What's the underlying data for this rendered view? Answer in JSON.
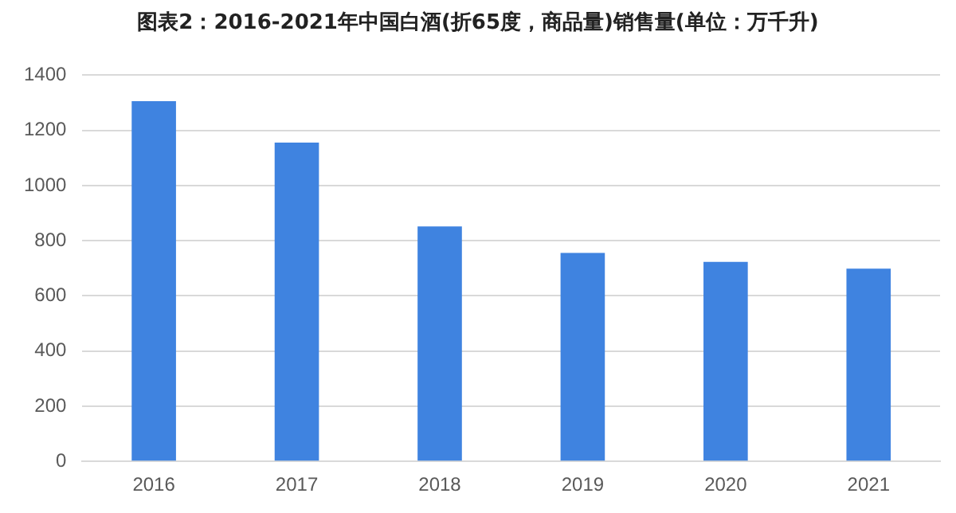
{
  "chart_data": {
    "type": "bar",
    "title": "图表2：2016-2021年中国白酒(折65度，商品量)销售量(单位：万千升)",
    "categories": [
      "2016",
      "2017",
      "2018",
      "2019",
      "2020",
      "2021"
    ],
    "values": [
      1306,
      1156,
      852,
      756,
      723,
      699
    ],
    "color": "#3f83e0",
    "ylim": [
      0,
      1400
    ],
    "yticks": [
      0,
      200,
      400,
      600,
      800,
      1000,
      1200,
      1400
    ],
    "grid": "y"
  }
}
